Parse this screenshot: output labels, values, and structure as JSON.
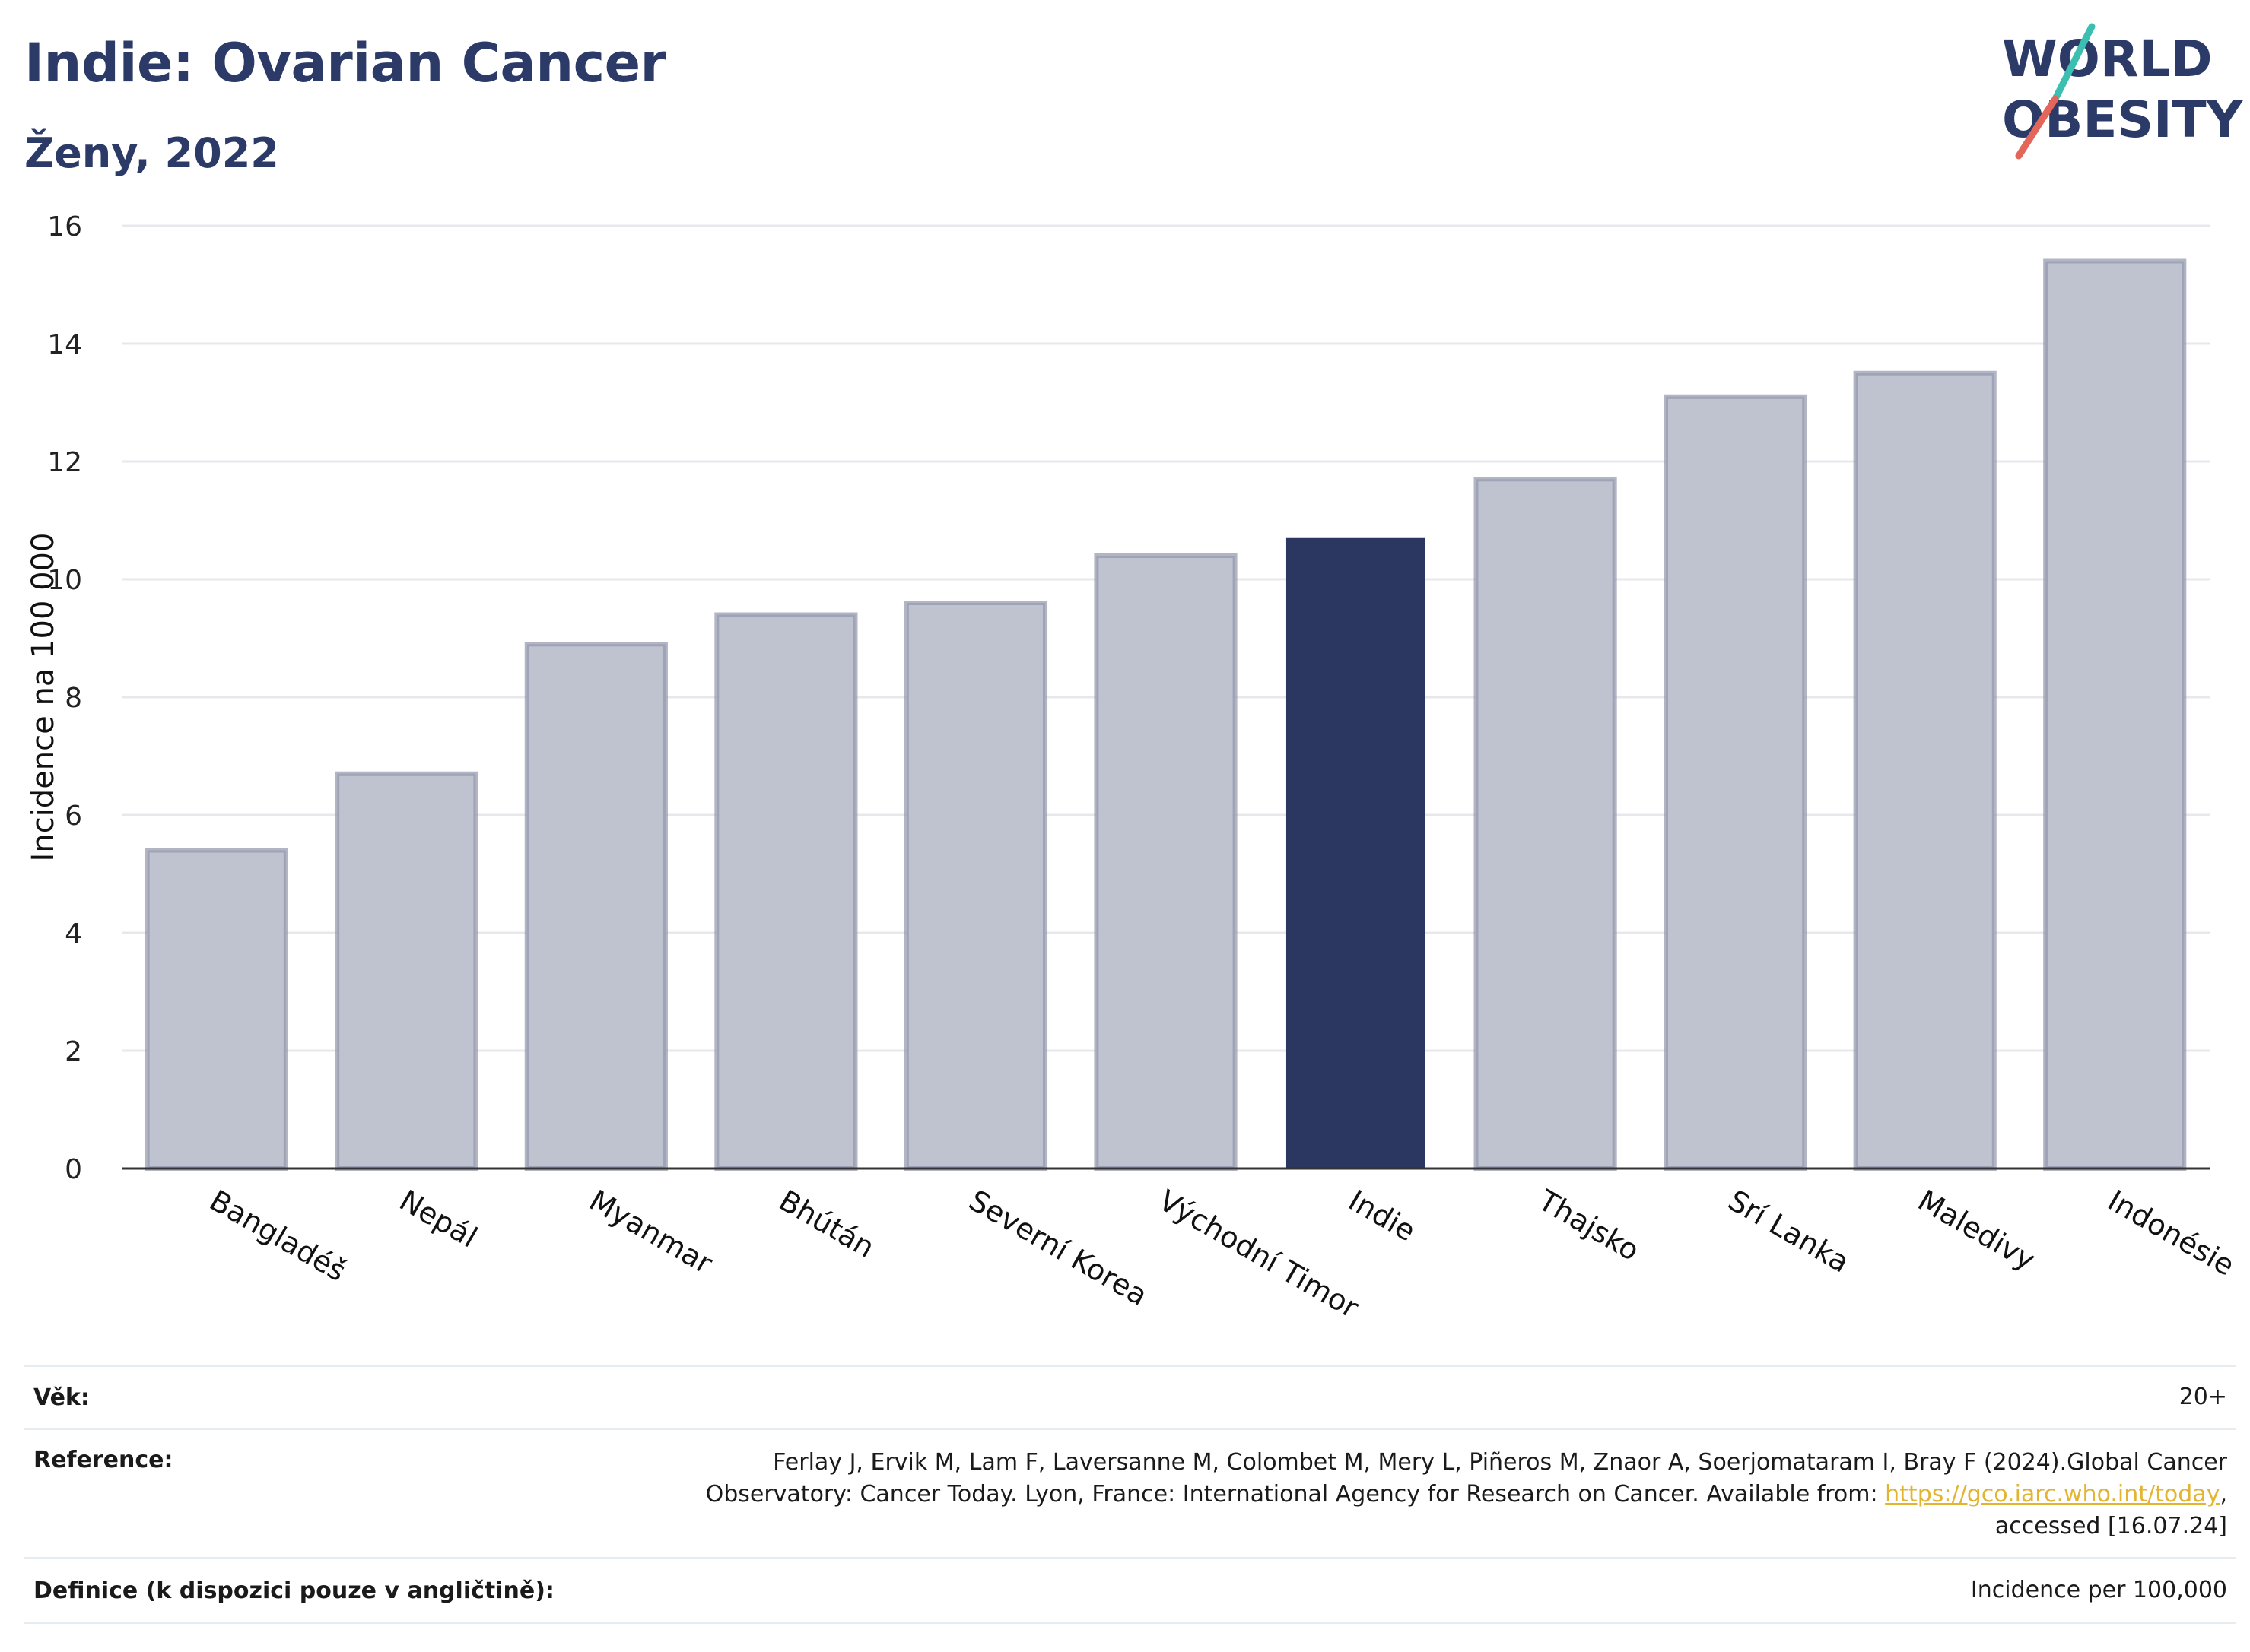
{
  "header": {
    "title": "Indie: Ovarian Cancer",
    "subtitle": "Ženy, 2022"
  },
  "logo": {
    "line1": "WORLD",
    "line2": "OBESITY"
  },
  "colors": {
    "highlight": "#2b3661",
    "bar": "#bfc3cf",
    "bar_border": "#9196ab",
    "grid": "#e8e8ec",
    "title": "#2b3a67"
  },
  "chart_data": {
    "type": "bar",
    "categories": [
      "Bangladéš",
      "Nepál",
      "Myanmar",
      "Bhútán",
      "Severní Korea",
      "Východní Timor",
      "Indie",
      "Thajsko",
      "Srí Lanka",
      "Maledivy",
      "Indonésie"
    ],
    "values": [
      5.4,
      6.7,
      8.9,
      9.4,
      9.6,
      10.4,
      10.7,
      11.7,
      13.1,
      13.5,
      15.4
    ],
    "highlight": "Indie",
    "ylabel": "Incidence na 100 000",
    "ylim": [
      0,
      16
    ],
    "yticks": [
      0,
      2,
      4,
      6,
      8,
      10,
      12,
      14,
      16
    ],
    "grid": true
  },
  "info": {
    "age_label": "Věk:",
    "age_value": "20+",
    "reference_label": "Reference:",
    "reference_line1": "Ferlay J, Ervik M, Lam F, Laversanne M, Colombet M, Mery L, Piñeros M, Znaor A, Soerjomataram I, Bray F (2024).Global Cancer",
    "reference_line2_pre": "Observatory: Cancer Today. Lyon, France: International Agency for Research on Cancer. Available from: ",
    "reference_link": "https://gco.iarc.who.int/today",
    "reference_line2_post": ",",
    "reference_line3": "accessed [16.07.24]",
    "definition_label": "Definice (k dispozici pouze v angličtině):",
    "definition_value": "Incidence per 100,000"
  }
}
